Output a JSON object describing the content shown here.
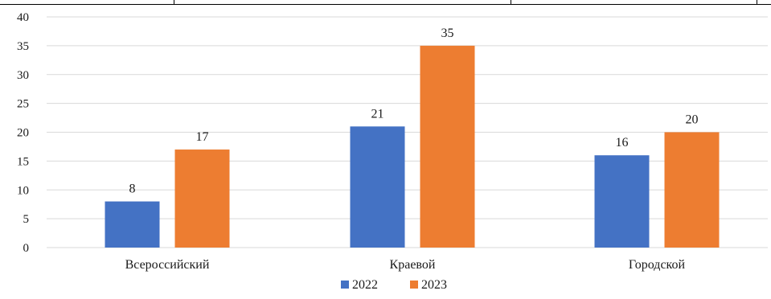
{
  "chart_data": {
    "type": "bar",
    "categories": [
      "Всероссийский",
      "Краевой",
      "Городской"
    ],
    "series": [
      {
        "name": "2022",
        "values": [
          8,
          21,
          16
        ],
        "color": "#4472C4"
      },
      {
        "name": "2023",
        "values": [
          17,
          35,
          20
        ],
        "color": "#ED7D31"
      }
    ],
    "ylim": [
      0,
      40
    ],
    "yticks": [
      0,
      5,
      10,
      15,
      20,
      25,
      30,
      35,
      40
    ],
    "grid": true,
    "legend_position": "bottom",
    "data_labels": true,
    "gridline_color": "#d9d9d9"
  }
}
